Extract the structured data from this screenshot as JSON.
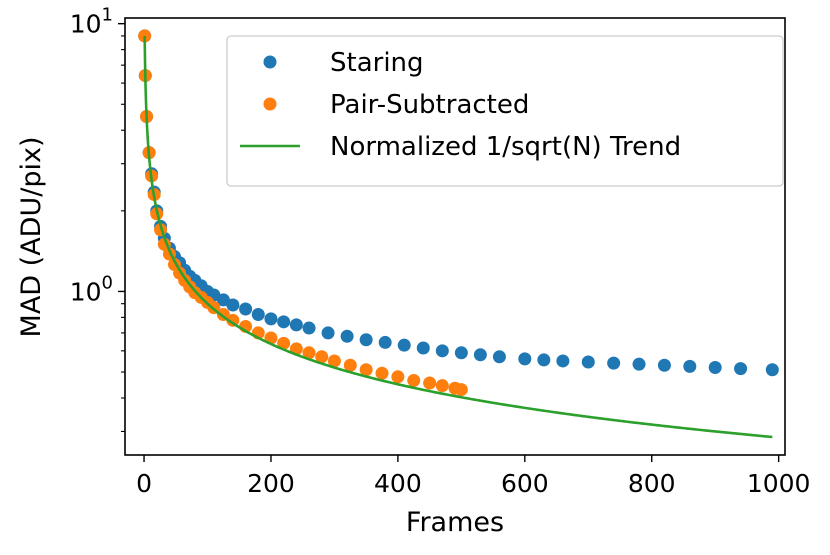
{
  "chart_data": {
    "type": "scatter",
    "xlabel": "Frames",
    "ylabel": "MAD (ADU/pix)",
    "xlim": [
      -30,
      1010
    ],
    "ylim": [
      0.245,
      10.5
    ],
    "yscale": "log",
    "xticks": [
      0,
      200,
      400,
      600,
      800,
      1000
    ],
    "xtick_labels": [
      "0",
      "200",
      "400",
      "600",
      "800",
      "1000"
    ],
    "yticks": [
      1,
      10
    ],
    "ytick_labels": [
      {
        "base": "10",
        "exp": "0"
      },
      {
        "base": "10",
        "exp": "1"
      }
    ],
    "legend_position": "top-right",
    "grid": false,
    "series": [
      {
        "name": "Staring",
        "kind": "points",
        "color": "#1f77b4",
        "points": [
          [
            1,
            9.0
          ],
          [
            2,
            6.4
          ],
          [
            4,
            4.5
          ],
          [
            8,
            3.3
          ],
          [
            12,
            2.75
          ],
          [
            16,
            2.35
          ],
          [
            20,
            2.0
          ],
          [
            26,
            1.75
          ],
          [
            32,
            1.58
          ],
          [
            40,
            1.45
          ],
          [
            48,
            1.35
          ],
          [
            56,
            1.28
          ],
          [
            64,
            1.2
          ],
          [
            72,
            1.14
          ],
          [
            80,
            1.1
          ],
          [
            90,
            1.05
          ],
          [
            100,
            1.0
          ],
          [
            110,
            0.97
          ],
          [
            125,
            0.93
          ],
          [
            140,
            0.89
          ],
          [
            160,
            0.86
          ],
          [
            180,
            0.82
          ],
          [
            200,
            0.79
          ],
          [
            220,
            0.77
          ],
          [
            240,
            0.75
          ],
          [
            260,
            0.73
          ],
          [
            290,
            0.7
          ],
          [
            320,
            0.68
          ],
          [
            350,
            0.66
          ],
          [
            380,
            0.645
          ],
          [
            410,
            0.63
          ],
          [
            440,
            0.615
          ],
          [
            470,
            0.6
          ],
          [
            500,
            0.59
          ],
          [
            530,
            0.58
          ],
          [
            560,
            0.57
          ],
          [
            600,
            0.56
          ],
          [
            630,
            0.555
          ],
          [
            660,
            0.55
          ],
          [
            700,
            0.545
          ],
          [
            740,
            0.54
          ],
          [
            780,
            0.535
          ],
          [
            820,
            0.53
          ],
          [
            860,
            0.525
          ],
          [
            900,
            0.52
          ],
          [
            940,
            0.515
          ],
          [
            990,
            0.51
          ]
        ]
      },
      {
        "name": "Pair-Subtracted",
        "kind": "points",
        "color": "#ff7f0e",
        "points": [
          [
            1,
            9.0
          ],
          [
            2,
            6.4
          ],
          [
            4,
            4.5
          ],
          [
            8,
            3.3
          ],
          [
            12,
            2.7
          ],
          [
            16,
            2.3
          ],
          [
            20,
            1.95
          ],
          [
            26,
            1.7
          ],
          [
            32,
            1.5
          ],
          [
            40,
            1.38
          ],
          [
            48,
            1.26
          ],
          [
            56,
            1.17
          ],
          [
            64,
            1.1
          ],
          [
            72,
            1.04
          ],
          [
            80,
            0.99
          ],
          [
            90,
            0.95
          ],
          [
            100,
            0.91
          ],
          [
            110,
            0.87
          ],
          [
            125,
            0.82
          ],
          [
            140,
            0.78
          ],
          [
            160,
            0.74
          ],
          [
            180,
            0.7
          ],
          [
            200,
            0.67
          ],
          [
            220,
            0.64
          ],
          [
            240,
            0.61
          ],
          [
            260,
            0.59
          ],
          [
            280,
            0.57
          ],
          [
            300,
            0.55
          ],
          [
            325,
            0.53
          ],
          [
            350,
            0.51
          ],
          [
            375,
            0.495
          ],
          [
            400,
            0.48
          ],
          [
            425,
            0.465
          ],
          [
            450,
            0.455
          ],
          [
            470,
            0.445
          ],
          [
            490,
            0.435
          ],
          [
            500,
            0.43
          ]
        ]
      },
      {
        "name": "Normalized 1/sqrt(N) Trend",
        "kind": "line",
        "color": "#2ca02c",
        "function": "9/sqrt(N)",
        "x_range": [
          1,
          990
        ]
      }
    ]
  }
}
